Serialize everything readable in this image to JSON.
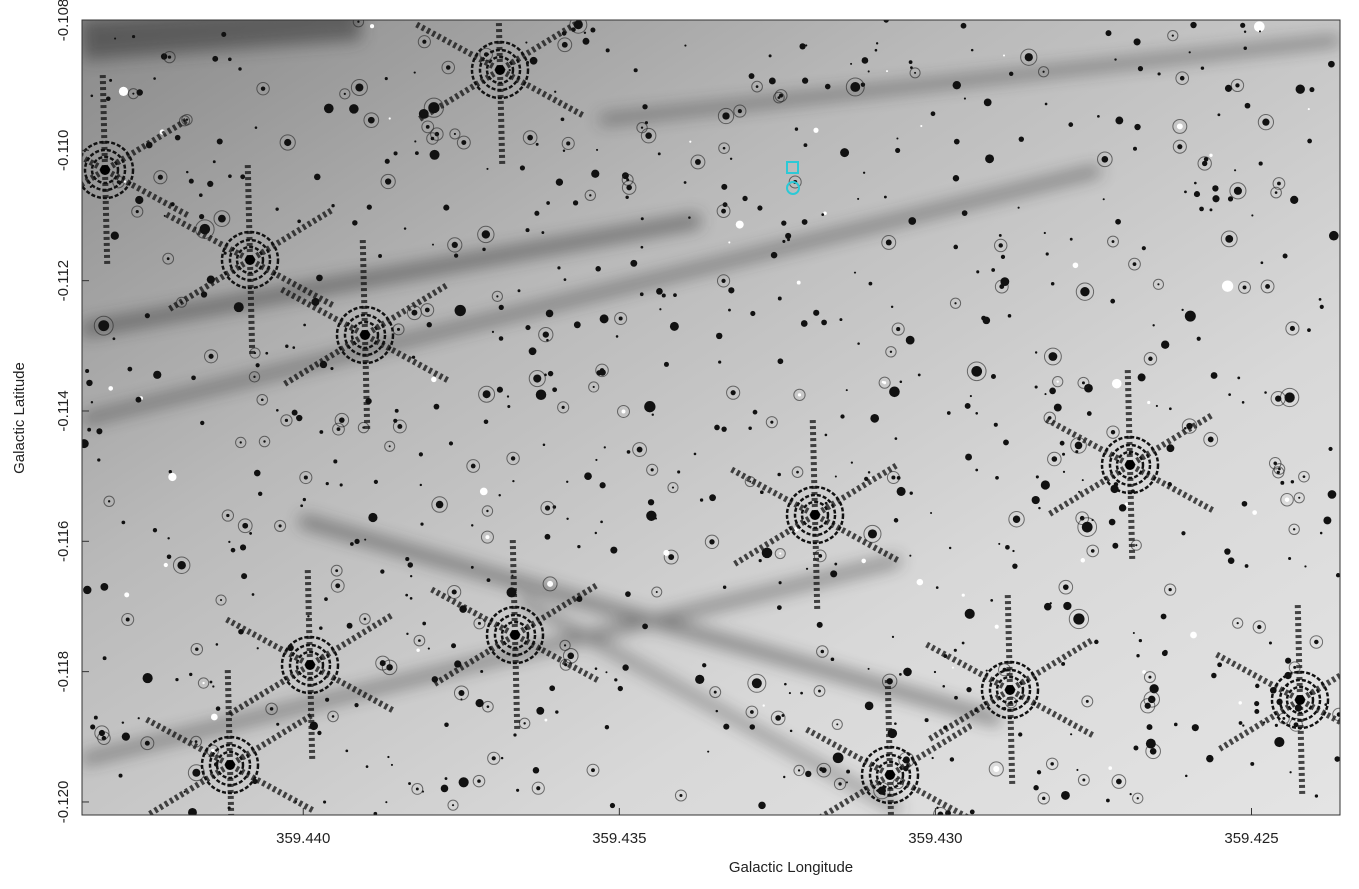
{
  "chart_data": {
    "type": "image",
    "x_label": "Galactic Longitude",
    "y_label": "Galactic Latitude",
    "xlim": [
      359.4435,
      359.4236
    ],
    "ylim": [
      -0.108,
      -0.1202
    ],
    "xticks": [
      {
        "value": 359.44,
        "label": "359.440"
      },
      359.435,
      {
        "value": 359.43,
        "label": "359.430"
      },
      359.425
    ],
    "yticks": [
      -0.108,
      {
        "value": -0.11,
        "label": "-0.110"
      },
      -0.112,
      -0.114,
      -0.116,
      -0.118,
      {
        "value": -0.12,
        "label": "-0.120"
      }
    ]
  }
}
